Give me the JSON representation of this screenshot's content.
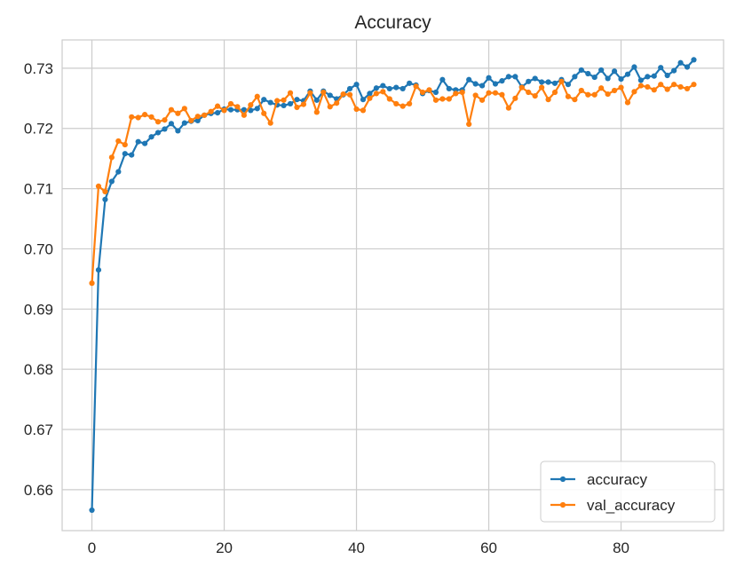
{
  "chart_data": {
    "type": "line",
    "title": "Accuracy",
    "xlabel": "",
    "ylabel": "",
    "xlim": [
      -4.5,
      95.5
    ],
    "ylim": [
      0.6532,
      0.7347
    ],
    "xticks": [
      0,
      20,
      40,
      60,
      80
    ],
    "yticks": [
      0.66,
      0.67,
      0.68,
      0.69,
      0.7,
      0.71,
      0.72,
      0.73
    ],
    "xtick_labels": [
      "0",
      "20",
      "40",
      "60",
      "80"
    ],
    "ytick_labels": [
      "0.66",
      "0.67",
      "0.68",
      "0.69",
      "0.70",
      "0.71",
      "0.72",
      "0.73"
    ],
    "grid": true,
    "legend_position": "lower-right",
    "series": [
      {
        "name": "accuracy",
        "color": "#1f77b4",
        "values": [
          0.6566,
          0.6965,
          0.7082,
          0.7112,
          0.7128,
          0.7158,
          0.7156,
          0.7178,
          0.7175,
          0.7186,
          0.7193,
          0.7199,
          0.7208,
          0.7196,
          0.7209,
          0.7212,
          0.7213,
          0.7222,
          0.7225,
          0.7226,
          0.7232,
          0.7231,
          0.7231,
          0.7231,
          0.723,
          0.7233,
          0.7248,
          0.7243,
          0.7239,
          0.7238,
          0.7241,
          0.7248,
          0.7246,
          0.7262,
          0.7247,
          0.7262,
          0.7255,
          0.7249,
          0.7256,
          0.7266,
          0.7273,
          0.7248,
          0.7258,
          0.7267,
          0.7271,
          0.7266,
          0.7268,
          0.7266,
          0.7275,
          0.7272,
          0.7258,
          0.7263,
          0.726,
          0.7281,
          0.7266,
          0.7264,
          0.7264,
          0.7281,
          0.7274,
          0.7271,
          0.7284,
          0.7274,
          0.7279,
          0.7286,
          0.7286,
          0.7269,
          0.7278,
          0.7283,
          0.7277,
          0.7277,
          0.7275,
          0.7281,
          0.7273,
          0.7286,
          0.7297,
          0.7291,
          0.7285,
          0.7297,
          0.7283,
          0.7295,
          0.7282,
          0.729,
          0.7302,
          0.728,
          0.7286,
          0.7287,
          0.7301,
          0.7288,
          0.7296,
          0.7309,
          0.7302,
          0.7314
        ]
      },
      {
        "name": "val_accuracy",
        "color": "#ff7f0e",
        "values": [
          0.6943,
          0.7104,
          0.7095,
          0.7152,
          0.7179,
          0.7173,
          0.7219,
          0.7218,
          0.7223,
          0.7219,
          0.7211,
          0.7214,
          0.7231,
          0.7225,
          0.7233,
          0.7213,
          0.722,
          0.7222,
          0.7228,
          0.7237,
          0.723,
          0.7241,
          0.7236,
          0.7222,
          0.7239,
          0.7253,
          0.7225,
          0.7209,
          0.7246,
          0.7247,
          0.7259,
          0.7235,
          0.724,
          0.7259,
          0.7227,
          0.726,
          0.7236,
          0.7242,
          0.7257,
          0.7256,
          0.7232,
          0.723,
          0.725,
          0.7258,
          0.7261,
          0.7249,
          0.7241,
          0.7237,
          0.7241,
          0.727,
          0.726,
          0.7264,
          0.7247,
          0.7249,
          0.7249,
          0.7258,
          0.726,
          0.7207,
          0.7255,
          0.7247,
          0.7259,
          0.7259,
          0.7256,
          0.7234,
          0.725,
          0.7268,
          0.726,
          0.7254,
          0.7268,
          0.7248,
          0.726,
          0.7278,
          0.7253,
          0.7248,
          0.7263,
          0.7256,
          0.7256,
          0.7267,
          0.7257,
          0.7263,
          0.7268,
          0.7243,
          0.7261,
          0.7271,
          0.7269,
          0.7264,
          0.7273,
          0.7265,
          0.7273,
          0.7269,
          0.7266,
          0.7273
        ]
      }
    ]
  }
}
